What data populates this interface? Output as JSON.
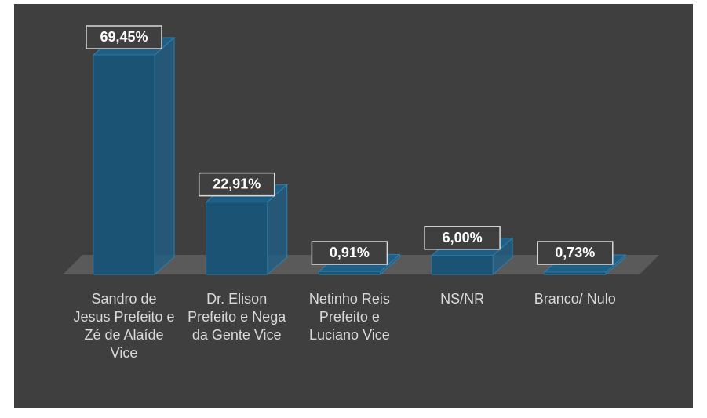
{
  "chart_data": {
    "type": "bar3d",
    "categories": [
      "Sandro de Jesus Prefeito e Zé de Alaíde Vice",
      "Dr. Elison Prefeito e Nega da Gente Vice",
      "Netinho Reis Prefeito e Luciano Vice",
      "NS/NR",
      "Branco/ Nulo"
    ],
    "values": [
      69.45,
      22.91,
      0.91,
      6.0,
      0.73
    ],
    "value_labels": [
      "69,45%",
      "22,91%",
      "0,91%",
      "6,00%",
      "0,73%"
    ],
    "color": "#1f5f85"
  }
}
